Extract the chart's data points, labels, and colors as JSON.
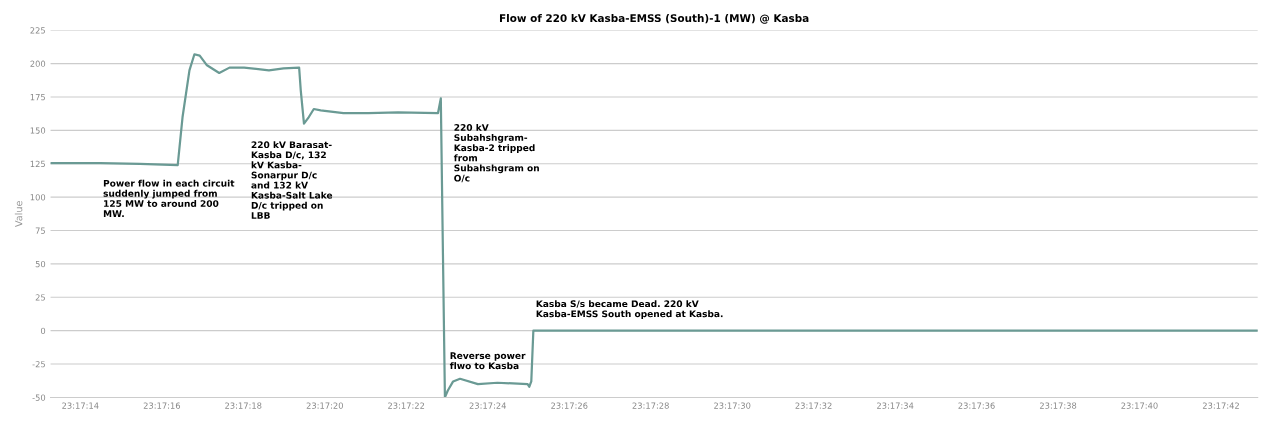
{
  "chart_data": {
    "type": "line",
    "title": "Flow of 220 kV Kasba-EMSS (South)-1 (MW) @ Kasba",
    "ylabel": "Value",
    "x": [
      23.287019,
      23.287358,
      23.287628,
      23.287886,
      23.287919,
      23.287966,
      23.288,
      23.288036,
      23.288083,
      23.288169,
      23.288239,
      23.288339,
      23.288508,
      23.288608,
      23.288714,
      23.288725,
      23.288747,
      23.28878,
      23.288814,
      23.288861,
      23.289016,
      23.289186,
      23.289389,
      23.289661,
      23.28968,
      23.289708,
      23.289727,
      23.289764,
      23.289811,
      23.289933,
      23.290066,
      23.290272,
      23.290283,
      23.290297,
      23.290311,
      23.29525
    ],
    "series": [
      {
        "color": "#6a9a94",
        "values": [
          125.5,
          125.5,
          125,
          124,
          160,
          195,
          207,
          206,
          199,
          193,
          197,
          197,
          195,
          196.5,
          197,
          180,
          155,
          160,
          166,
          165,
          163,
          163,
          163.5,
          163,
          174,
          -50,
          -45,
          -38,
          -36,
          -40,
          -39,
          -40,
          -42,
          -38,
          0,
          0
        ]
      }
    ],
    "xlim": [
      23.287019,
      23.29525
    ],
    "xticks": [
      {
        "value": 23.287222,
        "label": "23:17:14"
      },
      {
        "value": 23.287778,
        "label": "23:17:16"
      },
      {
        "value": 23.288333,
        "label": "23:17:18"
      },
      {
        "value": 23.288889,
        "label": "23:17:20"
      },
      {
        "value": 23.289444,
        "label": "23:17:22"
      },
      {
        "value": 23.29,
        "label": "23:17:24"
      },
      {
        "value": 23.290556,
        "label": "23:17:26"
      },
      {
        "value": 23.291111,
        "label": "23:17:28"
      },
      {
        "value": 23.291667,
        "label": "23:17:30"
      },
      {
        "value": 23.292222,
        "label": "23:17:32"
      },
      {
        "value": 23.292778,
        "label": "23:17:34"
      },
      {
        "value": 23.293333,
        "label": "23:17:36"
      },
      {
        "value": 23.293889,
        "label": "23:17:38"
      },
      {
        "value": 23.294444,
        "label": "23:17:40"
      },
      {
        "value": 23.295,
        "label": "23:17:42"
      }
    ],
    "ylim": [
      -50,
      225
    ],
    "yticks": [
      -50,
      -25,
      0,
      25,
      50,
      75,
      100,
      125,
      150,
      175,
      200,
      225
    ],
    "grid": "y",
    "marker": "none",
    "line_style": "solid",
    "annotations": [
      "Power flow in each circuit\nsuddenly jumped from\n125 MW to around 200\nMW.",
      "220 kV Barasat-\nKasba D/c, 132\nkV Kasba-\nSonarpur D/c\nand 132 kV\nKasba-Salt Lake\nD/c tripped on\nLBB",
      "220 kV\nSubahshgram-\nKasba-2 tripped\nfrom\nSubahshgram on\nO/c",
      {
        "text": "Reverse power\nflwo to Kasba",
        "x": 23.289741,
        "y": -16
      },
      "Kasba S/s became Dead. 220 kV\nKasba-EMSS South opened at Kasba."
    ]
  }
}
